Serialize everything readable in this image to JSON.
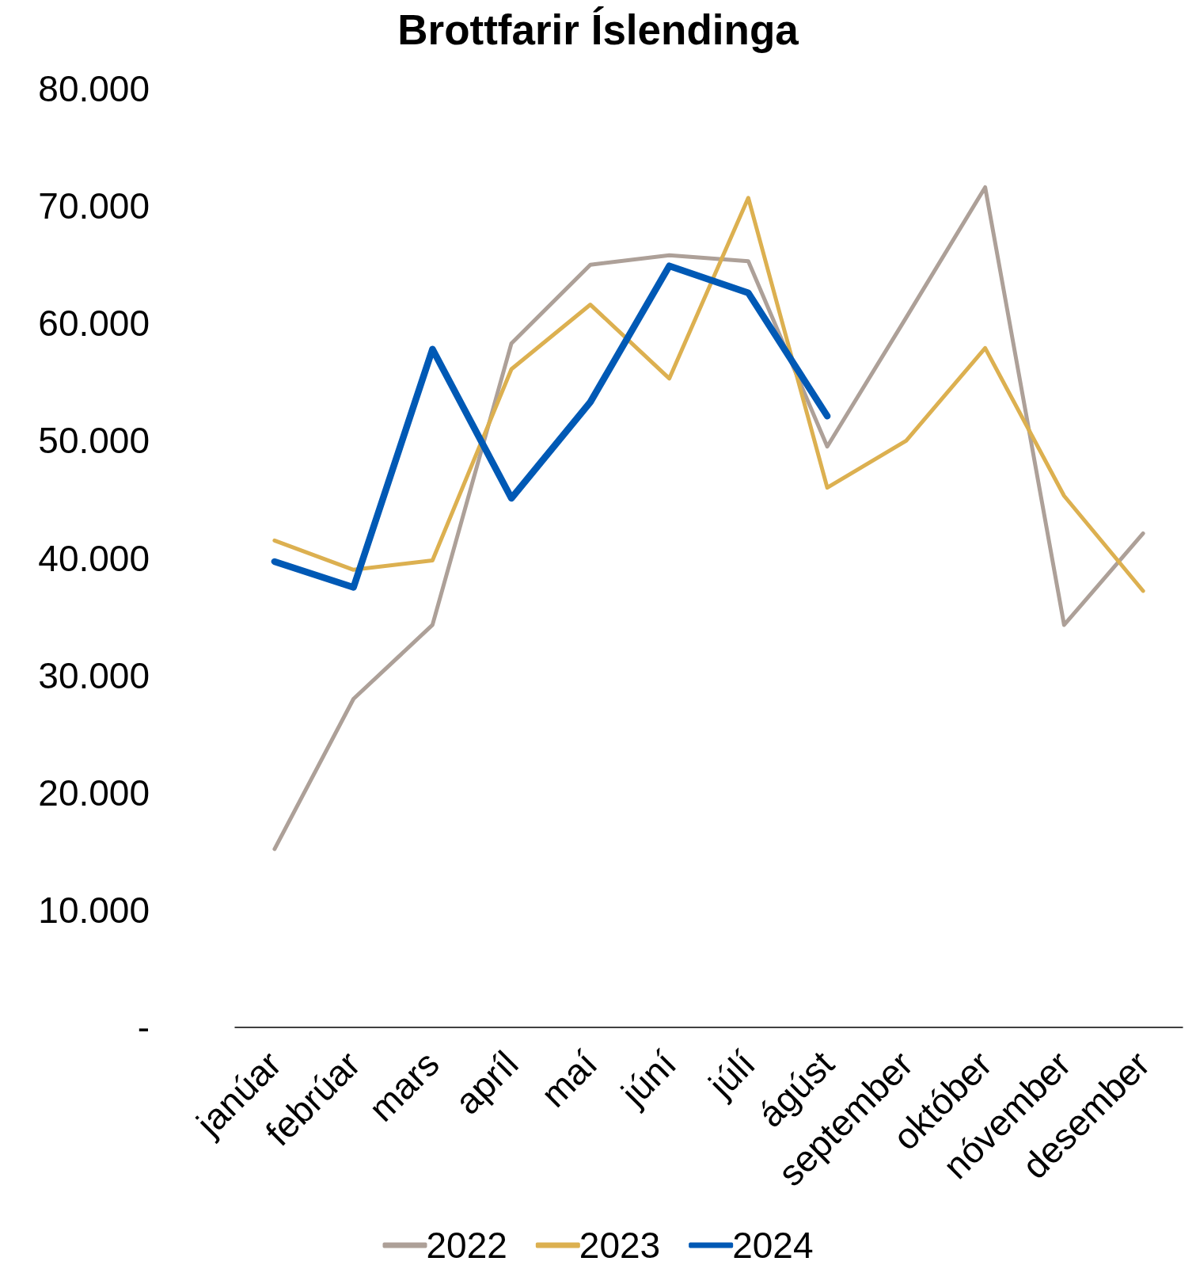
{
  "chart_data": {
    "type": "line",
    "title": "Brottfarir Íslendinga",
    "categories": [
      "janúar",
      "febrúar",
      "mars",
      "apríl",
      "maí",
      "júní",
      "júlí",
      "ágúst",
      "september",
      "október",
      "nóvember",
      "desember"
    ],
    "series": [
      {
        "name": "2022",
        "color": "#ada098",
        "values": [
          15200,
          28000,
          34300,
          58300,
          65000,
          65800,
          65300,
          49500,
          60500,
          71600,
          34300,
          42100
        ]
      },
      {
        "name": "2023",
        "color": "#dcb050",
        "values": [
          41500,
          39000,
          39800,
          56100,
          61600,
          55300,
          70700,
          46000,
          50000,
          57900,
          45300,
          37200
        ]
      },
      {
        "name": "2024",
        "color": "#0059b5",
        "values": [
          39700,
          37500,
          57800,
          45100,
          53300,
          64900,
          62600,
          52100,
          null,
          null,
          null,
          null
        ]
      }
    ],
    "ylim": [
      0,
      80000
    ],
    "yticks": [
      {
        "value": 0,
        "label": "-"
      },
      {
        "value": 10000,
        "label": "10.000"
      },
      {
        "value": 20000,
        "label": "20.000"
      },
      {
        "value": 30000,
        "label": "30.000"
      },
      {
        "value": 40000,
        "label": "40.000"
      },
      {
        "value": 50000,
        "label": "50.000"
      },
      {
        "value": 60000,
        "label": "60.000"
      },
      {
        "value": 70000,
        "label": "70.000"
      },
      {
        "value": 80000,
        "label": "80.000"
      }
    ],
    "grid": false,
    "legend": "bottom",
    "marker": "none",
    "line_style": "solid"
  }
}
